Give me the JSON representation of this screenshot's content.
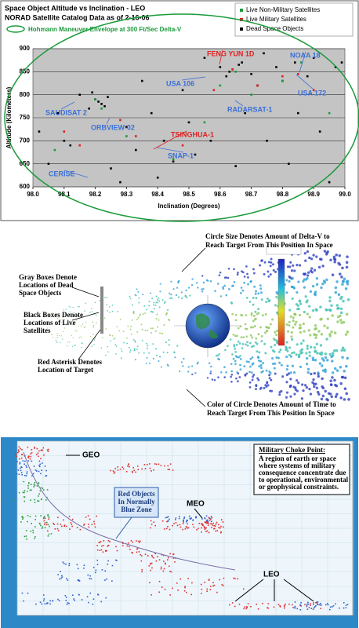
{
  "chart_data": [
    {
      "type": "scatter",
      "title": "Space Object Altitude vs Inclination - LEO",
      "subtitle": "NORAD Satellite Catalog Data as of 2-16-06",
      "envelope_label": "Hohmann Maneuver Envelope at 300 Ft/Sec Delta-V",
      "x_label": "Inclination (Degrees)",
      "y_label": "Altitude (Kilometers)",
      "xlim": [
        98.0,
        99.0
      ],
      "xticks": [
        {
          "value": 98.0,
          "label": "98.0"
        },
        98.1,
        98.2,
        98.3,
        98.4,
        98.5,
        98.6,
        98.7,
        98.8,
        98.9,
        {
          "value": 99.0,
          "label": "99.0"
        }
      ],
      "ylim": [
        600,
        900
      ],
      "yticks": [
        600,
        650,
        700,
        750,
        800,
        850,
        900
      ],
      "grid": true,
      "legend": "top-right",
      "series": [
        {
          "name": "Live Non-Military Satellites",
          "color": "#1a9a3a",
          "x": [
            98.07,
            98.2,
            98.22,
            98.3,
            98.45,
            98.55,
            98.6,
            98.65,
            98.7,
            98.8,
            98.86,
            98.95
          ],
          "values": [
            680,
            790,
            770,
            710,
            660,
            740,
            820,
            850,
            800,
            830,
            870,
            760
          ]
        },
        {
          "name": "Live Military Satellites",
          "color": "#e02020",
          "x": [
            98.1,
            98.15,
            98.28,
            98.33,
            98.48,
            98.58,
            98.64,
            98.72,
            98.8,
            98.85,
            98.9
          ],
          "values": [
            720,
            690,
            745,
            710,
            690,
            810,
            855,
            820,
            840,
            845,
            810
          ]
        },
        {
          "name": "Dead Space Objects",
          "color": "#000000",
          "x": [
            98.02,
            98.05,
            98.08,
            98.1,
            98.12,
            98.15,
            98.18,
            98.2,
            98.22,
            98.24,
            98.25,
            98.28,
            98.3,
            98.33,
            98.35,
            98.38,
            98.4,
            98.42,
            98.45,
            98.48,
            98.5,
            98.52,
            98.55,
            98.57,
            98.6,
            98.62,
            98.63,
            98.65,
            98.67,
            98.68,
            98.7,
            98.72,
            98.74,
            98.75,
            98.78,
            98.8,
            98.82,
            98.84,
            98.85,
            98.88,
            98.9,
            98.92,
            98.95,
            98.97,
            98.99,
            98.21,
            98.23,
            98.19,
            98.64,
            98.66
          ],
          "values": [
            720,
            650,
            760,
            700,
            690,
            800,
            770,
            790,
            780,
            795,
            640,
            610,
            730,
            680,
            830,
            760,
            620,
            700,
            655,
            810,
            740,
            670,
            880,
            700,
            860,
            840,
            850,
            645,
            870,
            760,
            845,
            820,
            890,
            700,
            860,
            830,
            650,
            870,
            760,
            840,
            880,
            720,
            610,
            860,
            870,
            785,
            775,
            805,
            855,
            865
          ]
        }
      ],
      "annotations": [
        {
          "text": "SAUDISAT 2",
          "color": "#3a6fd8"
        },
        {
          "text": "ORBVIEW-02",
          "color": "#3a6fd8"
        },
        {
          "text": "CERISE",
          "color": "#3a6fd8"
        },
        {
          "text": "USA 106",
          "color": "#3a6fd8"
        },
        {
          "text": "NOAA 18",
          "color": "#3a6fd8"
        },
        {
          "text": "USA 172",
          "color": "#3a6fd8"
        },
        {
          "text": "RADARSAT-1",
          "color": "#3a6fd8"
        },
        {
          "text": "SNAP-1",
          "color": "#3a6fd8"
        },
        {
          "text": "FENG YUN 1D",
          "color": "#e02020"
        },
        {
          "text": "TSINGHUA-1",
          "color": "#e02020"
        }
      ]
    }
  ],
  "panel_2": {
    "notes": [
      [
        "Circle Size Denotes Amount of Delta-V to",
        "Reach Target From This Position In Space"
      ],
      [
        "Gray Boxes Denote",
        "Locations of Dead",
        "Space Objects"
      ],
      [
        "Black Boxes Denote",
        "Locations of Live",
        "Satellites"
      ],
      [
        "Red Asterisk Denotes",
        "Location of Target"
      ],
      [
        "Color of Circle Denotes Amount of Time to",
        "Reach Target From This Position In Space"
      ]
    ]
  },
  "panel_3": {
    "labels": [
      "GEO",
      "MEO",
      "LEO"
    ],
    "callout": [
      "Red Objects",
      "In Normally",
      "Blue Zone"
    ],
    "box_title": "Military Choke Point:",
    "box_text": [
      "A region of earth or space",
      "where systems of military",
      "consequence concentrate due",
      "to operational, environmental",
      "or geophysical constraints."
    ]
  }
}
